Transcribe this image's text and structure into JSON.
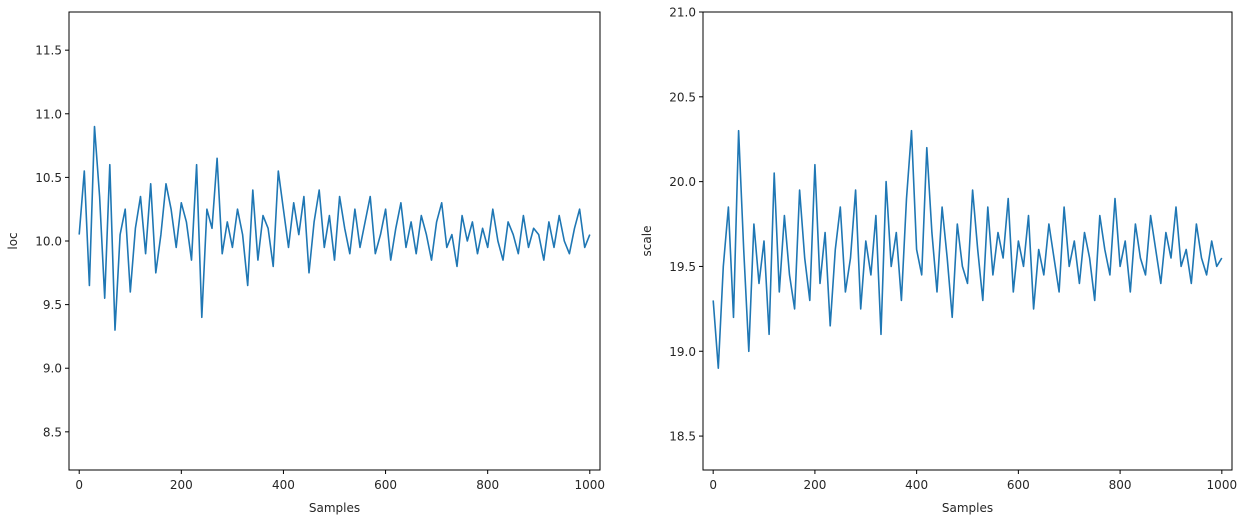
{
  "chart_data": [
    {
      "type": "line",
      "xlabel": "Samples",
      "ylabel": "loc",
      "xlim": [
        -20,
        1020
      ],
      "ylim": [
        8.2,
        11.8
      ],
      "xticks": [
        0,
        200,
        400,
        600,
        800,
        1000
      ],
      "xtick_labels": [
        "0",
        "200",
        "400",
        "600",
        "800",
        "1000"
      ],
      "yticks": [
        8.5,
        9.0,
        9.5,
        10.0,
        10.5,
        11.0,
        11.5
      ],
      "ytick_labels": [
        "8.5",
        "9.0",
        "9.5",
        "10.0",
        "10.5",
        "11.0",
        "11.5"
      ],
      "grid": false,
      "series": [
        {
          "color": "#1f77b4",
          "x_start": 0,
          "x_step": 10,
          "values": [
            10.05,
            10.55,
            9.65,
            10.9,
            10.35,
            9.55,
            10.6,
            9.3,
            10.05,
            10.25,
            9.6,
            10.1,
            10.35,
            9.9,
            10.45,
            9.75,
            10.05,
            10.45,
            10.25,
            9.95,
            10.3,
            10.15,
            9.85,
            10.6,
            9.4,
            10.25,
            10.1,
            10.65,
            9.9,
            10.15,
            9.95,
            10.25,
            10.05,
            9.65,
            10.4,
            9.85,
            10.2,
            10.1,
            9.8,
            10.55,
            10.25,
            9.95,
            10.3,
            10.05,
            10.35,
            9.75,
            10.15,
            10.4,
            9.95,
            10.2,
            9.85,
            10.35,
            10.1,
            9.9,
            10.25,
            9.95,
            10.15,
            10.35,
            9.9,
            10.05,
            10.25,
            9.85,
            10.1,
            10.3,
            9.95,
            10.15,
            9.9,
            10.2,
            10.05,
            9.85,
            10.15,
            10.3,
            9.95,
            10.05,
            9.8,
            10.2,
            10.0,
            10.15,
            9.9,
            10.1,
            9.95,
            10.25,
            10.0,
            9.85,
            10.15,
            10.05,
            9.9,
            10.2,
            9.95,
            10.1,
            10.05,
            9.85,
            10.15,
            9.95,
            10.2,
            10.0,
            9.9,
            10.1,
            10.25,
            9.95,
            10.05
          ]
        }
      ]
    },
    {
      "type": "line",
      "xlabel": "Samples",
      "ylabel": "scale",
      "xlim": [
        -20,
        1020
      ],
      "ylim": [
        18.3,
        21.0
      ],
      "xticks": [
        0,
        200,
        400,
        600,
        800,
        1000
      ],
      "xtick_labels": [
        "0",
        "200",
        "400",
        "600",
        "800",
        "1000"
      ],
      "yticks": [
        18.5,
        19.0,
        19.5,
        20.0,
        20.5,
        21.0
      ],
      "ytick_labels": [
        "18.5",
        "19.0",
        "19.5",
        "20.0",
        "20.5",
        "21.0"
      ],
      "grid": false,
      "series": [
        {
          "color": "#1f77b4",
          "x_start": 0,
          "x_step": 10,
          "values": [
            19.3,
            18.9,
            19.5,
            19.85,
            19.2,
            20.3,
            19.6,
            19.0,
            19.75,
            19.4,
            19.65,
            19.1,
            20.05,
            19.35,
            19.8,
            19.45,
            19.25,
            19.95,
            19.55,
            19.3,
            20.1,
            19.4,
            19.7,
            19.15,
            19.6,
            19.85,
            19.35,
            19.55,
            19.95,
            19.25,
            19.65,
            19.45,
            19.8,
            19.1,
            20.0,
            19.5,
            19.7,
            19.3,
            19.9,
            20.3,
            19.6,
            19.45,
            20.2,
            19.7,
            19.35,
            19.85,
            19.55,
            19.2,
            19.75,
            19.5,
            19.4,
            19.95,
            19.6,
            19.3,
            19.85,
            19.45,
            19.7,
            19.55,
            19.9,
            19.35,
            19.65,
            19.5,
            19.8,
            19.25,
            19.6,
            19.45,
            19.75,
            19.55,
            19.35,
            19.85,
            19.5,
            19.65,
            19.4,
            19.7,
            19.55,
            19.3,
            19.8,
            19.6,
            19.45,
            19.9,
            19.5,
            19.65,
            19.35,
            19.75,
            19.55,
            19.45,
            19.8,
            19.6,
            19.4,
            19.7,
            19.55,
            19.85,
            19.5,
            19.6,
            19.4,
            19.75,
            19.55,
            19.45,
            19.65,
            19.5,
            19.55
          ]
        }
      ]
    }
  ]
}
